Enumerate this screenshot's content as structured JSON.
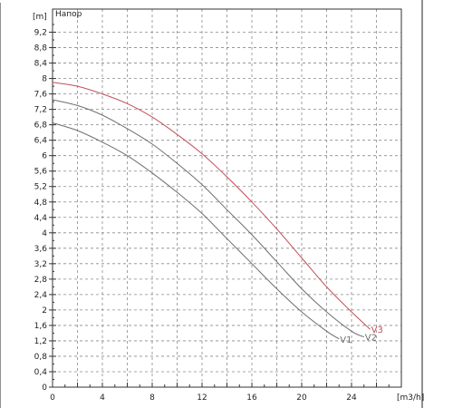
{
  "chart_data": {
    "type": "line",
    "ylabel": "Напор",
    "yunit": "[m]",
    "xunit": "[m3/h]",
    "xlim": [
      0,
      28
    ],
    "ylim": [
      0,
      9.8
    ],
    "x_ticks": [
      0,
      4,
      8,
      12,
      16,
      20,
      24
    ],
    "y_ticks": [
      0,
      0.4,
      0.8,
      1.2,
      1.6,
      2,
      2.4,
      2.8,
      3.2,
      3.6,
      4,
      4.4,
      4.8,
      5.2,
      5.6,
      6,
      6.4,
      6.8,
      7.2,
      7.6,
      8,
      8.4,
      8.8,
      9.2
    ],
    "y_tick_labels": [
      "0",
      "0,4",
      "0,8",
      "1,2",
      "1,6",
      "2",
      "2,4",
      "2,8",
      "3,2",
      "3,6",
      "4",
      "4,4",
      "4,8",
      "5,2",
      "5,6",
      "6",
      "6,4",
      "6,8",
      "7,2",
      "7,6",
      "8",
      "8,4",
      "8,8",
      "9,2"
    ],
    "grid": true,
    "series": [
      {
        "name": "V1",
        "color": "#6e6e6e",
        "x": [
          0,
          2,
          4,
          6,
          8,
          10,
          12,
          14,
          16,
          18,
          20,
          22,
          23
        ],
        "y": [
          6.85,
          6.65,
          6.35,
          6.0,
          5.55,
          5.05,
          4.5,
          3.85,
          3.2,
          2.55,
          1.95,
          1.45,
          1.25
        ]
      },
      {
        "name": "V2",
        "color": "#6e6e6e",
        "x": [
          0,
          2,
          4,
          6,
          8,
          10,
          12,
          14,
          16,
          18,
          20,
          22,
          24,
          25
        ],
        "y": [
          7.45,
          7.3,
          7.05,
          6.7,
          6.3,
          5.8,
          5.25,
          4.6,
          3.95,
          3.25,
          2.55,
          1.95,
          1.45,
          1.3
        ]
      },
      {
        "name": "V3",
        "color": "#c0505a",
        "x": [
          0,
          2,
          4,
          6,
          8,
          10,
          12,
          14,
          16,
          18,
          20,
          22,
          24,
          25.5
        ],
        "y": [
          7.9,
          7.8,
          7.6,
          7.35,
          7.0,
          6.55,
          6.05,
          5.45,
          4.8,
          4.1,
          3.35,
          2.6,
          1.95,
          1.5
        ]
      }
    ]
  }
}
